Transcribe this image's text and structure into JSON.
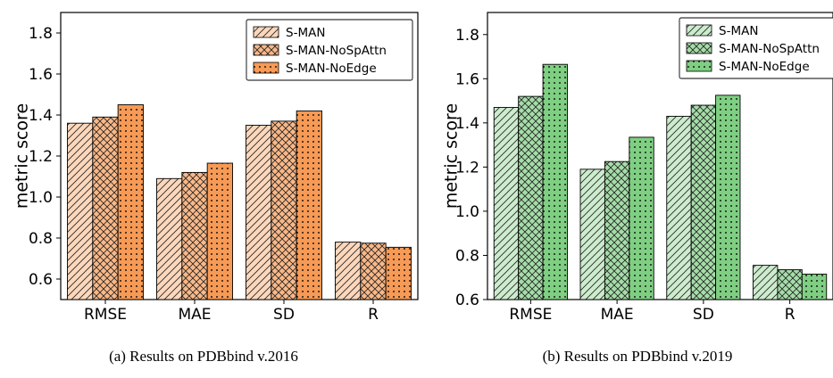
{
  "chart_data": [
    {
      "type": "bar",
      "categories": [
        "RMSE",
        "MAE",
        "SD",
        "R"
      ],
      "series": [
        {
          "name": "S-MAN",
          "values": [
            1.36,
            1.09,
            1.35,
            0.78
          ],
          "pattern": "diagonal"
        },
        {
          "name": "S-MAN-NoSpAttn",
          "values": [
            1.39,
            1.12,
            1.37,
            0.775
          ],
          "pattern": "crosshatch"
        },
        {
          "name": "S-MAN-NoEdge",
          "values": [
            1.45,
            1.165,
            1.42,
            0.755
          ],
          "pattern": "dots"
        }
      ],
      "color": "#f79a55",
      "ylabel": "metric score",
      "ylim": [
        0.5,
        1.9
      ],
      "yticks": [
        "0.6",
        "0.8",
        "1.0",
        "1.2",
        "1.4",
        "1.6",
        "1.8"
      ],
      "legend": "top-right",
      "caption": "(a)  Results on PDBbind v.2016"
    },
    {
      "type": "bar",
      "categories": [
        "RMSE",
        "MAE",
        "SD",
        "R"
      ],
      "series": [
        {
          "name": "S-MAN",
          "values": [
            1.47,
            1.19,
            1.43,
            0.755
          ],
          "pattern": "diagonal"
        },
        {
          "name": "S-MAN-NoSpAttn",
          "values": [
            1.52,
            1.225,
            1.48,
            0.735
          ],
          "pattern": "crosshatch"
        },
        {
          "name": "S-MAN-NoEdge",
          "values": [
            1.665,
            1.335,
            1.525,
            0.715
          ],
          "pattern": "dots"
        }
      ],
      "color": "#7fcf82",
      "ylabel": "metric score",
      "ylim": [
        0.6,
        1.9
      ],
      "yticks": [
        "0.6",
        "0.8",
        "1.0",
        "1.2",
        "1.4",
        "1.6",
        "1.8"
      ],
      "legend": "top-right",
      "caption": "(b)  Results on PDBbind v.2019"
    }
  ]
}
